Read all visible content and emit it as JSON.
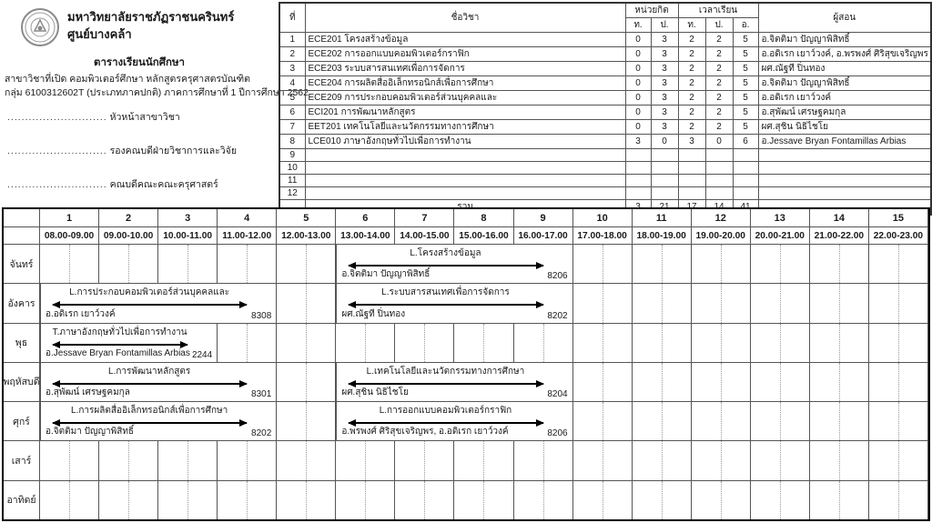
{
  "page": {
    "header": {
      "university": "มหาวิทยาลัยราชภัฏราชนครินทร์",
      "campus": "ศูนย์บางคล้า",
      "doc_title": "ตารางเรียนนักศึกษา",
      "program_line": "สาขาวิชาที่เปิด คอมพิวเตอร์ศึกษา  หลักสูตรครุศาสตรบัณฑิต",
      "group_line": "กลุ่ม 6100312602T (ประเภทภาคปกติ) ภาคการศึกษาที่ 1 ปีการศึกษา 2562",
      "signatures": [
        {
          "dots": "............................",
          "title": "หัวหน้าสาขาวิชา"
        },
        {
          "dots": "............................",
          "title": "รองคณบดีฝ่ายวิชาการและวิจัย"
        },
        {
          "dots": "............................",
          "title": "คณบดีคณะคณะครุศาสตร์"
        }
      ]
    },
    "course_table": {
      "col_no": "ที่",
      "col_subject": "ชื่อวิชา",
      "col_credits": "หน่วยกิต",
      "col_hours": "เวลาเรียน",
      "col_instructor": "ผู้สอน",
      "sub_cols": [
        "ท.",
        "ป.",
        "ท.",
        "ป.",
        "อ."
      ],
      "rows": [
        {
          "no": "1",
          "subject": "ECE201 โครงสร้างข้อมูล",
          "vals": [
            "0",
            "3",
            "2",
            "2",
            "5"
          ],
          "instructor": "อ.จิตติมา ปัญญาพิสิทธิ์"
        },
        {
          "no": "2",
          "subject": "ECE202 การออกแบบคอมพิวเตอร์กราฟิก",
          "vals": [
            "0",
            "3",
            "2",
            "2",
            "5"
          ],
          "instructor": "อ.อดิเรก เยาว์วงค์, อ.พรพงศ์ ศิริสุขเจริญพร"
        },
        {
          "no": "3",
          "subject": "ECE203 ระบบสารสนเทศเพื่อการจัดการ",
          "vals": [
            "0",
            "3",
            "2",
            "2",
            "5"
          ],
          "instructor": "ผศ.ณัฐที ปิ่นทอง"
        },
        {
          "no": "4",
          "subject": "ECE204 การผลิตสื่ออิเล็กทรอนิกส์เพื่อการศึกษา",
          "vals": [
            "0",
            "3",
            "2",
            "2",
            "5"
          ],
          "instructor": "อ.จิตติมา ปัญญาพิสิทธิ์"
        },
        {
          "no": "5",
          "subject": "ECE209 การประกอบคอมพิวเตอร์ส่วนบุคคลและ",
          "vals": [
            "0",
            "3",
            "2",
            "2",
            "5"
          ],
          "instructor": "อ.อดิเรก เยาว์วงค์"
        },
        {
          "no": "6",
          "subject": "ECI201 การพัฒนาหลักสูตร",
          "vals": [
            "0",
            "3",
            "2",
            "2",
            "5"
          ],
          "instructor": "อ.สุพัฒน์ เศรษฐคมกุล"
        },
        {
          "no": "7",
          "subject": "EET201 เทคโนโลยีและนวัตกรรมทางการศึกษา",
          "vals": [
            "0",
            "3",
            "2",
            "2",
            "5"
          ],
          "instructor": "ผศ.สุชิน นิธิไชโย"
        },
        {
          "no": "8",
          "subject": "LCE010 ภาษาอังกฤษทั่วไปเพื่อการทำงาน",
          "vals": [
            "3",
            "0",
            "3",
            "0",
            "6"
          ],
          "instructor": "อ.Jessave Bryan Fontamillas Arbias"
        },
        {
          "no": "9",
          "subject": "",
          "vals": [
            "",
            "",
            "",
            "",
            ""
          ],
          "instructor": ""
        },
        {
          "no": "10",
          "subject": "",
          "vals": [
            "",
            "",
            "",
            "",
            ""
          ],
          "instructor": ""
        },
        {
          "no": "11",
          "subject": "",
          "vals": [
            "",
            "",
            "",
            "",
            ""
          ],
          "instructor": ""
        },
        {
          "no": "12",
          "subject": "",
          "vals": [
            "",
            "",
            "",
            "",
            ""
          ],
          "instructor": ""
        }
      ],
      "total_label": "รวม",
      "totals": [
        "3",
        "21",
        "17",
        "14",
        "41"
      ]
    },
    "timetable": {
      "periods": [
        {
          "num": "1",
          "time": "08.00-09.00"
        },
        {
          "num": "2",
          "time": "09.00-10.00"
        },
        {
          "num": "3",
          "time": "10.00-11.00"
        },
        {
          "num": "4",
          "time": "11.00-12.00"
        },
        {
          "num": "5",
          "time": "12.00-13.00"
        },
        {
          "num": "6",
          "time": "13.00-14.00"
        },
        {
          "num": "7",
          "time": "14.00-15.00"
        },
        {
          "num": "8",
          "time": "15.00-16.00"
        },
        {
          "num": "9",
          "time": "16.00-17.00"
        },
        {
          "num": "10",
          "time": "17.00-18.00"
        },
        {
          "num": "11",
          "time": "18.00-19.00"
        },
        {
          "num": "12",
          "time": "19.00-20.00"
        },
        {
          "num": "13",
          "time": "20.00-21.00"
        },
        {
          "num": "14",
          "time": "21.00-22.00"
        },
        {
          "num": "15",
          "time": "22.00-23.00"
        }
      ],
      "days": [
        {
          "name": "จันทร์",
          "blocks": [
            {
              "start": 6,
              "span": 4,
              "subject": "L.โครงสร้างข้อมูล",
              "instructor": "อ.จิตติมา ปัญญาพิสิทธิ์",
              "room": "8206"
            }
          ]
        },
        {
          "name": "อังคาร",
          "blocks": [
            {
              "start": 1,
              "span": 4,
              "subject": "L.การประกอบคอมพิวเตอร์ส่วนบุคคลและ",
              "instructor": "อ.อดิเรก เยาว์วงค์",
              "room": "8308"
            },
            {
              "start": 6,
              "span": 4,
              "subject": "L.ระบบสารสนเทศเพื่อการจัดการ",
              "instructor": "ผศ.ณัฐที ปิ่นทอง",
              "room": "8202"
            }
          ]
        },
        {
          "name": "พุธ",
          "blocks": [
            {
              "start": 1,
              "span": 3,
              "subject": "T.ภาษาอังกฤษทั่วไปเพื่อการทำงาน",
              "instructor": "อ.Jessave Bryan Fontamillas Arbias",
              "room": "2244"
            }
          ]
        },
        {
          "name": "พฤหัสบดี",
          "blocks": [
            {
              "start": 1,
              "span": 4,
              "subject": "L.การพัฒนาหลักสูตร",
              "instructor": "อ.สุพัฒน์ เศรษฐคมกุล",
              "room": "8301"
            },
            {
              "start": 6,
              "span": 4,
              "subject": "L.เทคโนโลยีและนวัตกรรมทางการศึกษา",
              "instructor": "ผศ.สุชิน นิธิไชโย",
              "room": "8204"
            }
          ]
        },
        {
          "name": "ศุกร์",
          "blocks": [
            {
              "start": 1,
              "span": 4,
              "subject": "L.การผลิตสื่ออิเล็กทรอนิกส์เพื่อการศึกษา",
              "instructor": "อ.จิตติมา ปัญญาพิสิทธิ์",
              "room": "8202"
            },
            {
              "start": 6,
              "span": 4,
              "subject": "L.การออกแบบคอมพิวเตอร์กราฟิก",
              "instructor": "อ.พรพงศ์ ศิริสุขเจริญพร, อ.อดิเรก เยาว์วงค์",
              "room": "8206"
            }
          ]
        },
        {
          "name": "เสาร์",
          "blocks": []
        },
        {
          "name": "อาทิตย์",
          "blocks": []
        }
      ]
    },
    "colors": {
      "text": "#1a1a1a",
      "grid_line": "#555555",
      "outer_border": "#000000"
    }
  }
}
